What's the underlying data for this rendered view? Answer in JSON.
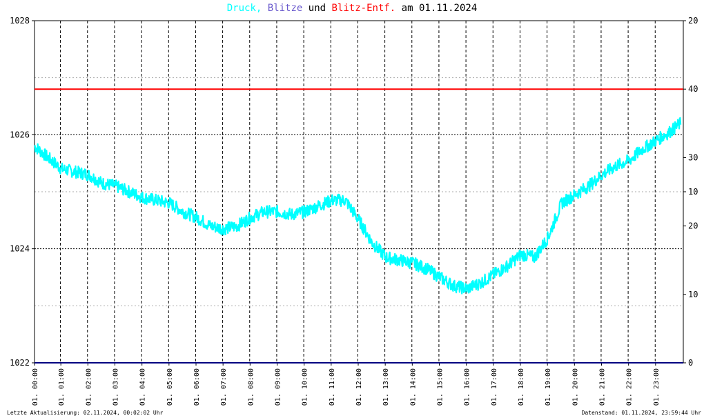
{
  "title": {
    "part1": "Druck,",
    "part2": "Blitze",
    "part3": "und",
    "part4": "Blitz-Entf.",
    "part5": "am 01.11.2024"
  },
  "colors": {
    "pressure": "#00ffff",
    "strikes": "#6a5acd",
    "distance": "#ff0000",
    "baseline": "#000080",
    "text": "#000000"
  },
  "footer": {
    "left": "Letzte Aktualisierung: 02.11.2024, 00:02:02 Uhr",
    "right": "Datenstand: 01.11.2024, 23:59:44 Uhr"
  },
  "chart_data": {
    "type": "line",
    "x_range": [
      "01. 00:00",
      "01. 24:00"
    ],
    "y_left": {
      "range": [
        1022,
        1028
      ],
      "ticks": [
        "1022",
        "1024",
        "1026",
        "1028"
      ]
    },
    "y_right": [
      {
        "value": "20",
        "position": 1028.0
      },
      {
        "value": "40",
        "position": 1026.8
      },
      {
        "value": "30",
        "position": 1025.6
      },
      {
        "value": "10",
        "position": 1025.0
      },
      {
        "value": "20",
        "position": 1024.4
      },
      {
        "value": "10",
        "position": 1023.2
      },
      {
        "value": "0",
        "position": 1022.0
      }
    ],
    "x_ticks": [
      "01. 00:00",
      "01. 01:00",
      "01. 02:00",
      "01. 03:00",
      "01. 04:00",
      "01. 05:00",
      "01. 06:00",
      "01. 07:00",
      "01. 08:00",
      "01. 09:00",
      "01. 10:00",
      "01. 11:00",
      "01. 12:00",
      "01. 13:00",
      "01. 14:00",
      "01. 15:00",
      "01. 16:00",
      "01. 17:00",
      "01. 18:00",
      "01. 19:00",
      "01. 20:00",
      "01. 21:00",
      "01. 22:00",
      "01. 23:00"
    ],
    "grid": true,
    "series": [
      {
        "name": "Druck",
        "hours": [
          0,
          0.5,
          1,
          1.5,
          2,
          2.5,
          3,
          3.5,
          4,
          4.5,
          5,
          5.5,
          6,
          6.5,
          7,
          7.5,
          8,
          8.5,
          9,
          9.5,
          10,
          10.5,
          11,
          11.5,
          12,
          12.5,
          13,
          13.5,
          14,
          14.5,
          15,
          15.5,
          16,
          16.5,
          17,
          17.5,
          18,
          18.5,
          19,
          19.5,
          20,
          20.5,
          21,
          21.5,
          22,
          22.5,
          23,
          23.5,
          23.9
        ],
        "values": [
          1025.8,
          1025.6,
          1025.4,
          1025.35,
          1025.3,
          1025.15,
          1025.1,
          1025.0,
          1024.9,
          1024.85,
          1024.8,
          1024.65,
          1024.55,
          1024.4,
          1024.35,
          1024.4,
          1024.55,
          1024.65,
          1024.65,
          1024.6,
          1024.65,
          1024.75,
          1024.85,
          1024.85,
          1024.5,
          1024.1,
          1023.85,
          1023.8,
          1023.75,
          1023.65,
          1023.5,
          1023.35,
          1023.3,
          1023.4,
          1023.55,
          1023.7,
          1023.9,
          1023.85,
          1024.2,
          1024.8,
          1024.95,
          1025.1,
          1025.3,
          1025.45,
          1025.55,
          1025.75,
          1025.9,
          1026.05,
          1026.2
        ]
      },
      {
        "name": "Blitz-Entf.",
        "hours": [
          0,
          23.9
        ],
        "values": [
          1026.8,
          1026.8
        ]
      }
    ]
  }
}
